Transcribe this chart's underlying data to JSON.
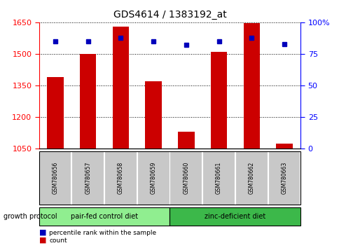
{
  "title": "GDS4614 / 1383192_at",
  "samples": [
    "GSM780656",
    "GSM780657",
    "GSM780658",
    "GSM780659",
    "GSM780660",
    "GSM780661",
    "GSM780662",
    "GSM780663"
  ],
  "counts": [
    1390,
    1500,
    1630,
    1370,
    1130,
    1510,
    1645,
    1075
  ],
  "percentiles": [
    85,
    85,
    88,
    85,
    82,
    85,
    88,
    83
  ],
  "ylim_left": [
    1050,
    1650
  ],
  "ylim_right": [
    0,
    100
  ],
  "yticks_left": [
    1050,
    1200,
    1350,
    1500,
    1650
  ],
  "yticks_right": [
    0,
    25,
    50,
    75,
    100
  ],
  "ytick_labels_right": [
    "0",
    "25",
    "50",
    "75",
    "100%"
  ],
  "groups": [
    {
      "label": "pair-fed control diet",
      "color": "#90EE90",
      "indices": [
        0,
        1,
        2,
        3
      ]
    },
    {
      "label": "zinc-deficient diet",
      "color": "#3CB84A",
      "indices": [
        4,
        5,
        6,
        7
      ]
    }
  ],
  "group_label": "growth protocol",
  "bar_color": "#CC0000",
  "dot_color": "#0000BB",
  "bar_width": 0.5,
  "xticklabel_box_color": "#C8C8C8"
}
